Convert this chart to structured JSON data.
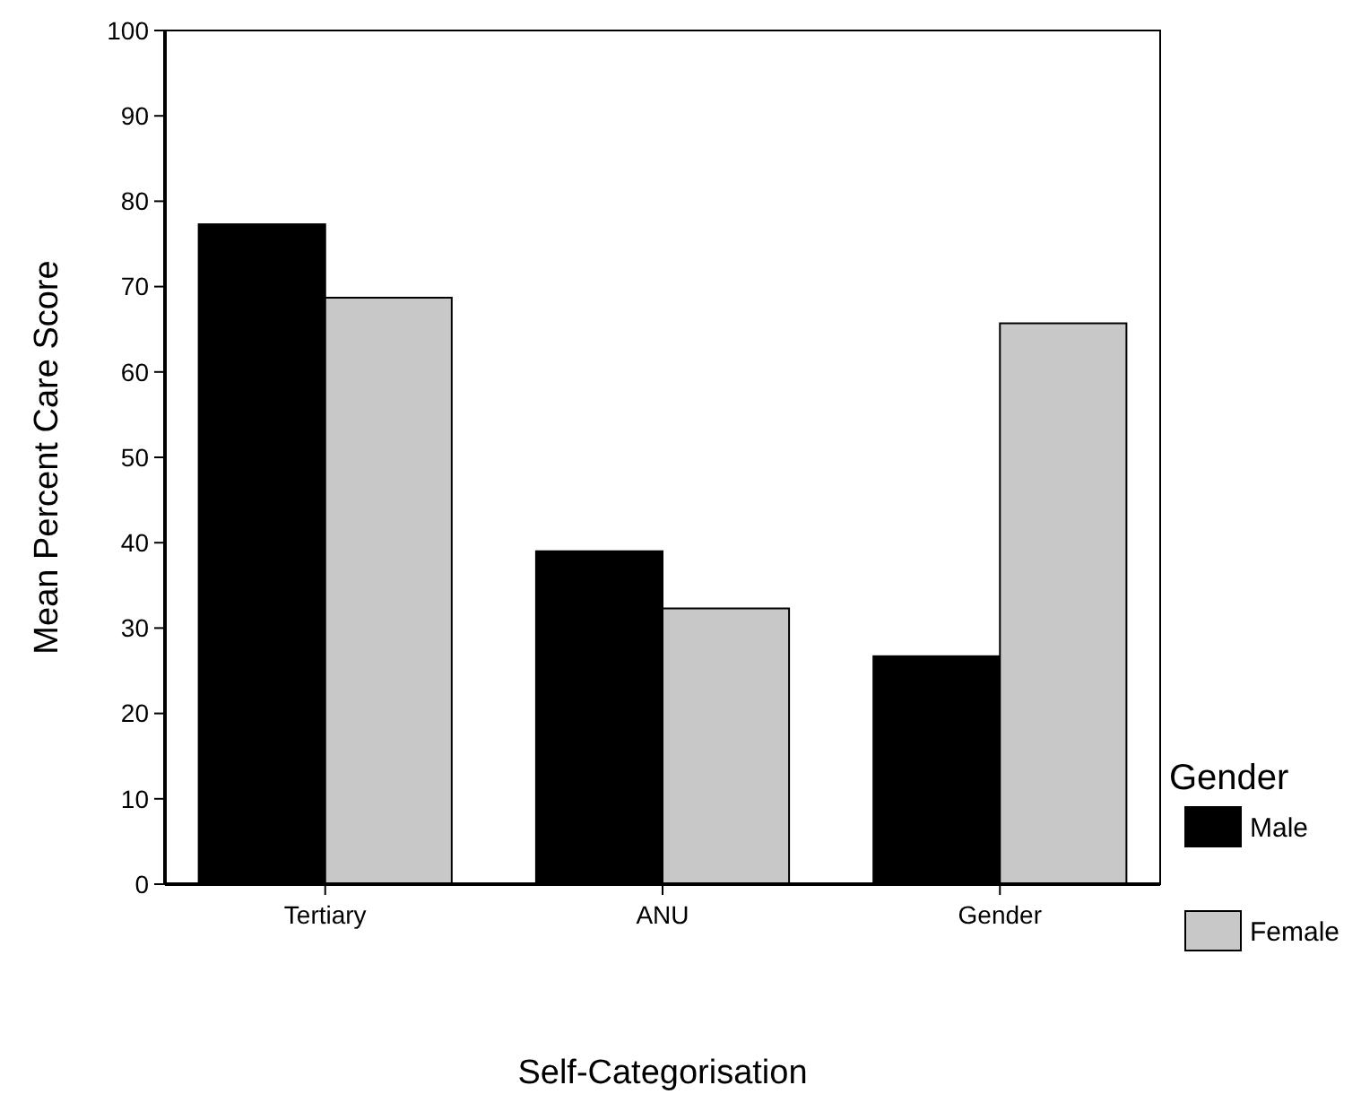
{
  "chart_data": {
    "type": "bar",
    "xlabel": "Self-Categorisation",
    "ylabel": "Mean Percent Care Score",
    "legend_title": "Gender",
    "categories": [
      "Tertiary",
      "ANU",
      "Gender"
    ],
    "series": [
      {
        "name": "Male",
        "color": "#000000",
        "values": [
          77.3,
          39.0,
          26.7
        ]
      },
      {
        "name": "Female",
        "color": "#c8c8c8",
        "values": [
          68.7,
          32.3,
          65.7
        ]
      }
    ],
    "ylim": [
      0,
      100
    ],
    "yticks": [
      0,
      10,
      20,
      30,
      40,
      50,
      60,
      70,
      80,
      90,
      100
    ],
    "grid": false,
    "legend": "right"
  }
}
